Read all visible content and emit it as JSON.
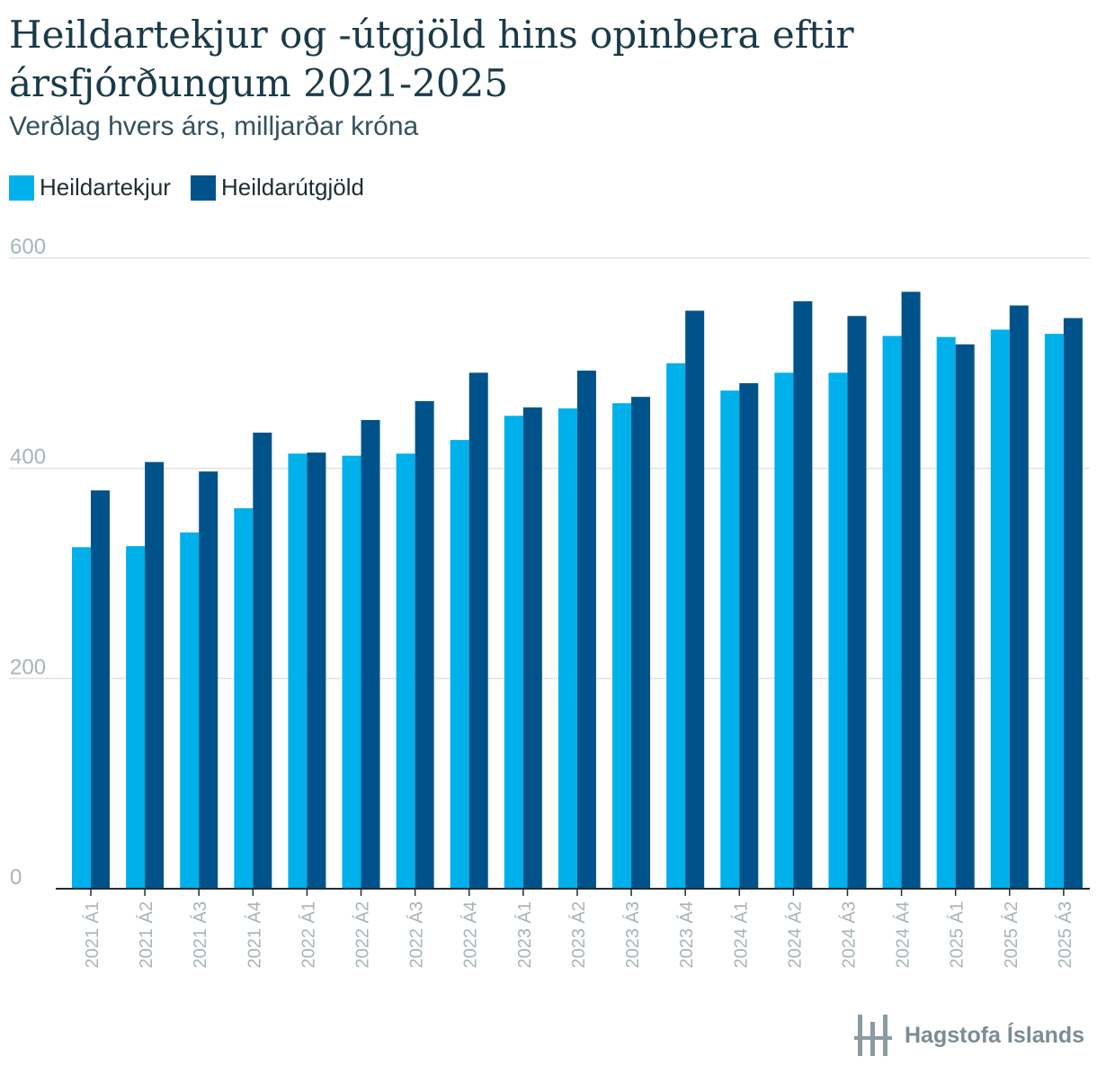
{
  "title": "Heildartekjur og -útgjöld hins opinbera eftir ársfjórðungum 2021-2025",
  "subtitle": "Verðlag hvers árs, milljarðar króna",
  "footer": {
    "brand": "Hagstofa Íslands",
    "logo_icon": "hagstofa-logo-icon"
  },
  "colors": {
    "revenue": "#00b0ea",
    "expenditure": "#00538a",
    "grid": "#e3e3e3",
    "axis": "#1f2d33",
    "tick": "#a8b4ba"
  },
  "chart_data": {
    "type": "bar",
    "title": "Heildartekjur og -útgjöld hins opinbera eftir ársfjórðungum 2021-2025",
    "subtitle": "Verðlag hvers árs, milljarðar króna",
    "xlabel": "",
    "ylabel": "",
    "ylim": [
      0,
      600
    ],
    "yticks": [
      0,
      200,
      400,
      600
    ],
    "grid": true,
    "legend_position": "top-left",
    "categories": [
      "2021 Á1",
      "2021 Á2",
      "2021 Á3",
      "2021 Á4",
      "2022 Á1",
      "2022 Á2",
      "2022 Á3",
      "2022 Á4",
      "2023 Á1",
      "2023 Á2",
      "2023 Á3",
      "2023 Á4",
      "2024 Á1",
      "2024 Á2",
      "2024 Á3",
      "2024 Á4",
      "2025 Á1",
      "2025 Á2",
      "2025 Á3"
    ],
    "series": [
      {
        "name": "Heildartekjur",
        "color": "#00b0ea",
        "values": [
          325,
          326,
          339,
          362,
          414,
          412,
          414,
          427,
          450,
          457,
          462,
          500,
          474,
          491,
          491,
          526,
          525,
          532,
          528
        ]
      },
      {
        "name": "Heildarútgjöld",
        "color": "#00538a",
        "values": [
          379,
          406,
          397,
          434,
          415,
          446,
          464,
          491,
          458,
          493,
          468,
          550,
          481,
          559,
          545,
          568,
          518,
          555,
          543
        ]
      }
    ]
  }
}
